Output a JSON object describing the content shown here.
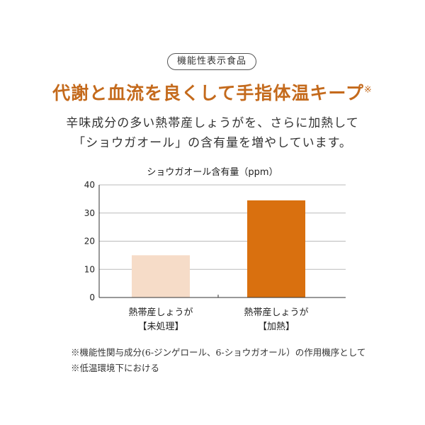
{
  "badge": "機能性表示食品",
  "headline": {
    "text": "代謝と血流を良くして手指体温キープ",
    "mark": "※"
  },
  "description": [
    "辛味成分の多い熱帯産しょうがを、さらに加熱して",
    "「ショウガオール」の含有量を増やしています。"
  ],
  "chart_data": {
    "type": "bar",
    "title": "ショウガオール含有量（ppm）",
    "categories": [
      {
        "line1": "熱帯産しょうが",
        "line2": "【未処理】"
      },
      {
        "line1": "熱帯産しょうが",
        "line2": "【加熱】"
      }
    ],
    "values": [
      15,
      34.5
    ],
    "ylim": [
      0,
      40
    ],
    "yticks": [
      "0",
      "10",
      "20",
      "30",
      "40"
    ],
    "grid": true,
    "colors": [
      "#f6dcc8",
      "#d9700f"
    ],
    "axis_color": "#333333",
    "grid_color": "#bbbbbb"
  },
  "footnotes": [
    "※機能性関与成分(6-ジンゲロール、6-ショウガオール）の作用機序として",
    "※低温環境下における"
  ]
}
